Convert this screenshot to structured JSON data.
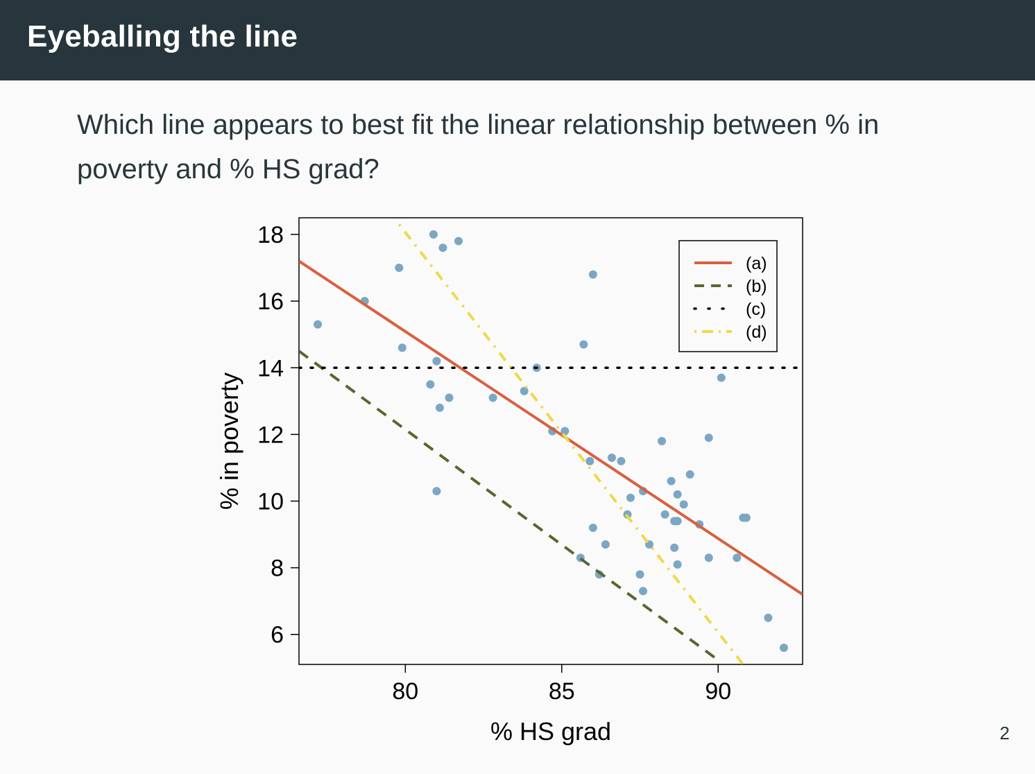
{
  "header": {
    "title": "Eyeballing the line"
  },
  "question": {
    "text": "Which line appears to best fit the linear relationship between % in poverty and % HS grad?"
  },
  "page_number": "2",
  "chart_data": {
    "type": "scatter",
    "title": "",
    "xlabel": "% HS grad",
    "ylabel": "% in poverty",
    "xlim": [
      76.6,
      92.7
    ],
    "ylim": [
      5.1,
      18.5
    ],
    "xticks": [
      80,
      85,
      90
    ],
    "yticks": [
      6,
      8,
      10,
      12,
      14,
      16,
      18
    ],
    "legend_position": "top-right",
    "point_color": "#7ba7c4",
    "points": [
      [
        77.2,
        15.3
      ],
      [
        78.7,
        16.0
      ],
      [
        79.8,
        17.0
      ],
      [
        79.9,
        14.6
      ],
      [
        80.8,
        13.5
      ],
      [
        80.9,
        18.0
      ],
      [
        81.0,
        14.2
      ],
      [
        81.0,
        10.3
      ],
      [
        81.1,
        12.8
      ],
      [
        81.2,
        17.6
      ],
      [
        81.4,
        13.1
      ],
      [
        81.7,
        17.8
      ],
      [
        82.8,
        13.1
      ],
      [
        83.8,
        13.3
      ],
      [
        84.2,
        14.0
      ],
      [
        84.7,
        12.1
      ],
      [
        85.1,
        12.1
      ],
      [
        85.6,
        8.3
      ],
      [
        85.7,
        14.7
      ],
      [
        85.9,
        11.2
      ],
      [
        86.0,
        16.8
      ],
      [
        86.0,
        9.2
      ],
      [
        86.2,
        7.8
      ],
      [
        86.4,
        8.7
      ],
      [
        86.6,
        11.3
      ],
      [
        86.9,
        11.2
      ],
      [
        87.1,
        9.6
      ],
      [
        87.2,
        10.1
      ],
      [
        87.5,
        7.8
      ],
      [
        87.6,
        10.3
      ],
      [
        87.6,
        7.3
      ],
      [
        87.8,
        8.7
      ],
      [
        88.2,
        11.8
      ],
      [
        88.3,
        9.6
      ],
      [
        88.5,
        10.6
      ],
      [
        88.6,
        9.4
      ],
      [
        88.6,
        8.6
      ],
      [
        88.7,
        10.2
      ],
      [
        88.7,
        9.4
      ],
      [
        88.7,
        8.1
      ],
      [
        88.9,
        9.9
      ],
      [
        89.1,
        10.8
      ],
      [
        89.4,
        9.3
      ],
      [
        89.7,
        11.9
      ],
      [
        89.7,
        8.3
      ],
      [
        90.1,
        13.7
      ],
      [
        90.6,
        8.3
      ],
      [
        90.8,
        9.5
      ],
      [
        90.9,
        9.5
      ],
      [
        91.6,
        6.5
      ],
      [
        92.1,
        5.6
      ]
    ],
    "series": [
      {
        "name": "(a)",
        "color": "#d95f40",
        "style": "solid",
        "x": [
          76.6,
          92.7
        ],
        "y": [
          17.2,
          7.2
        ]
      },
      {
        "name": "(b)",
        "color": "#56682e",
        "style": "dashed",
        "x": [
          76.6,
          89.9
        ],
        "y": [
          14.5,
          5.3
        ]
      },
      {
        "name": "(c)",
        "color": "#000000",
        "style": "dotted",
        "x": [
          76.6,
          92.7
        ],
        "y": [
          14.0,
          14.0
        ]
      },
      {
        "name": "(d)",
        "color": "#f0d848",
        "style": "dotdash",
        "x": [
          79.8,
          90.8
        ],
        "y": [
          18.3,
          5.1
        ]
      }
    ]
  }
}
